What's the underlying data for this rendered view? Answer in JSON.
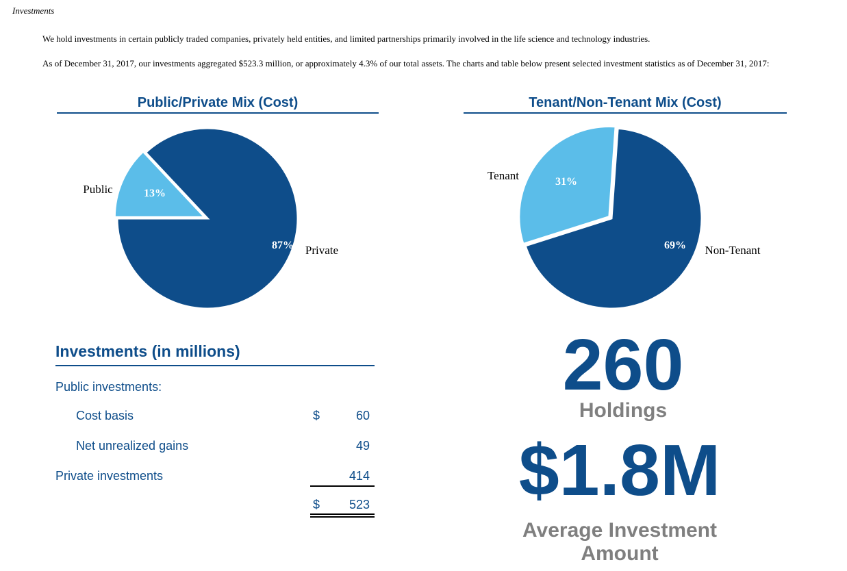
{
  "heading": "Investments",
  "paragraphs": [
    "We hold investments in certain publicly traded companies, privately held entities, and limited partnerships primarily involved in the life science and technology industries.",
    "As of December 31, 2017, our investments aggregated $523.3 million, or approximately 4.3% of our total assets. The charts and table below present selected investment statistics as of December 31, 2017:"
  ],
  "colors": {
    "dark_blue": "#0e4d8a",
    "light_blue": "#5bbde9",
    "gray": "#7f7f7f"
  },
  "chart_data": [
    {
      "type": "pie",
      "title": "Public/Private Mix (Cost)",
      "slices": [
        {
          "label": "Public",
          "value": 13,
          "value_label": "13%",
          "color": "#5bbde9"
        },
        {
          "label": "Private",
          "value": 87,
          "value_label": "87%",
          "color": "#0e4d8a"
        }
      ]
    },
    {
      "type": "pie",
      "title": "Tenant/Non-Tenant Mix (Cost)",
      "slices": [
        {
          "label": "Tenant",
          "value": 31,
          "value_label": "31%",
          "color": "#5bbde9"
        },
        {
          "label": "Non-Tenant",
          "value": 69,
          "value_label": "69%",
          "color": "#0e4d8a"
        }
      ]
    }
  ],
  "table": {
    "title": "Investments (in millions)",
    "public_label": "Public investments:",
    "cost_basis_label": "Cost basis",
    "cost_basis_currency": "$",
    "cost_basis_value": "60",
    "unrealized_label": "Net unrealized gains",
    "unrealized_value": "49",
    "private_label": "Private investments",
    "private_value": "414",
    "total_currency": "$",
    "total_value": "523"
  },
  "stats": {
    "holdings_value": "260",
    "holdings_label": "Holdings",
    "avg_value": "$1.8M",
    "avg_label": "Average Investment Amount"
  }
}
